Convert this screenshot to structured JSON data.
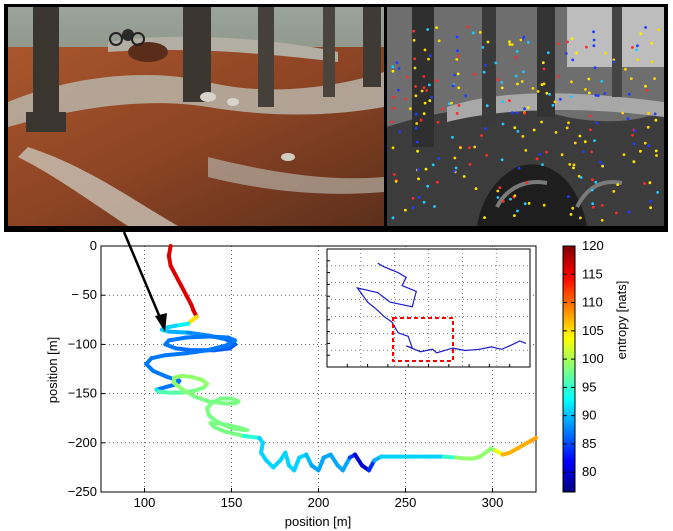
{
  "figure": {
    "photo_left": "forest trail photo with mountain biker",
    "photo_right": "grayscale forest trail with colored feature points"
  },
  "chart_data": [
    {
      "type": "line",
      "xlabel": "position [m]",
      "ylabel": "position [m]",
      "xlim": [
        75,
        325
      ],
      "ylim": [
        -250,
        0
      ],
      "xticks": [
        "100",
        "150",
        "200",
        "250",
        "300"
      ],
      "yticks": [
        "0",
        "− 50",
        "−100",
        "−150",
        "−200",
        "−250"
      ],
      "grid": true,
      "colormap": "jet",
      "series": [
        {
          "x": [
            115,
            114,
            115,
            118,
            121,
            124,
            127,
            128,
            130,
            125,
            118,
            112,
            110,
            114,
            125,
            137,
            147,
            152,
            149,
            140,
            128,
            118,
            112,
            114,
            124,
            137,
            148,
            152,
            147,
            136,
            124,
            112,
            104,
            101,
            105,
            113,
            120,
            119,
            113,
            107,
            108,
            114,
            122,
            129,
            134,
            136,
            133,
            127,
            121,
            117,
            117,
            122,
            129,
            137,
            146,
            152,
            154,
            150,
            144,
            139,
            136,
            137,
            142,
            150,
            157,
            159,
            155,
            148,
            142,
            138,
            140,
            147,
            157,
            166,
            168,
            167,
            170,
            174,
            178,
            181,
            183,
            186,
            189,
            193,
            196,
            200,
            203,
            207,
            211,
            214,
            218,
            221,
            225,
            229,
            232,
            236,
            240,
            246,
            255,
            265,
            272,
            279,
            285,
            289,
            293,
            296,
            299,
            302,
            306,
            310,
            314,
            318,
            322,
            325
          ],
          "y": [
            0,
            -10,
            -20,
            -30,
            -40,
            -50,
            -60,
            -65,
            -72,
            -79,
            -81,
            -83,
            -85,
            -87,
            -88,
            -91,
            -95,
            -100,
            -104,
            -106,
            -106,
            -104,
            -100,
            -96,
            -93,
            -92,
            -93,
            -96,
            -101,
            -106,
            -109,
            -111,
            -114,
            -120,
            -127,
            -133,
            -137,
            -140,
            -143,
            -146,
            -148,
            -149,
            -149,
            -147,
            -144,
            -140,
            -136,
            -133,
            -132,
            -134,
            -139,
            -146,
            -153,
            -158,
            -160,
            -160,
            -158,
            -155,
            -155,
            -159,
            -165,
            -172,
            -179,
            -185,
            -187,
            -187,
            -185,
            -182,
            -180,
            -180,
            -184,
            -189,
            -193,
            -195,
            -200,
            -210,
            -218,
            -225,
            -218,
            -210,
            -223,
            -228,
            -215,
            -212,
            -223,
            -228,
            -215,
            -212,
            -223,
            -228,
            -215,
            -212,
            -223,
            -228,
            -218,
            -214,
            -214,
            -214,
            -214,
            -214,
            -214,
            -215,
            -216,
            -216,
            -214,
            -210,
            -206,
            -208,
            -212,
            -210,
            -206,
            -202,
            -198,
            -195
          ],
          "entropy": [
            116,
            116,
            116,
            116,
            116,
            116,
            116,
            116,
            116,
            94,
            91,
            91,
            91,
            91,
            88,
            88,
            87,
            86,
            86,
            86,
            86,
            87,
            87,
            87,
            87,
            87,
            87,
            87,
            87,
            87,
            87,
            87,
            87,
            87,
            87,
            87,
            87,
            87,
            87,
            87,
            96,
            96,
            97,
            98,
            98,
            99,
            99,
            99,
            99,
            99,
            99,
            99,
            98,
            98,
            98,
            98,
            98,
            98,
            98,
            98,
            98,
            98,
            98,
            98,
            98,
            98,
            98,
            98,
            98,
            98,
            98,
            98,
            98,
            91,
            91,
            91,
            91,
            91,
            91,
            91,
            91,
            91,
            91,
            91,
            89,
            89,
            89,
            89,
            89,
            89,
            89,
            80,
            80,
            80,
            88,
            91,
            91,
            91,
            91,
            91,
            91,
            99,
            99,
            99,
            99,
            99,
            99,
            99,
            107,
            107,
            107,
            107,
            107,
            108
          ]
        }
      ]
    },
    {
      "type": "line",
      "inset": true,
      "grid": true,
      "xlim": [
        0,
        10
      ],
      "ylim": [
        0,
        10
      ],
      "series": [
        {
          "x": [
            2.5,
            2.8,
            3.5,
            3.9,
            3.7,
            4.4,
            4.3,
            4.2,
            3.1,
            2.5,
            1.5,
            2.0,
            2.5,
            2.8,
            3.2,
            3.5,
            4.0,
            4.2,
            3.9,
            4.6,
            5.2,
            5.4,
            6.2,
            6.8,
            7.5,
            8.1,
            8.6,
            9.0,
            9.5,
            9.8
          ],
          "y": [
            8.8,
            8.5,
            8.0,
            7.6,
            6.9,
            6.4,
            5.8,
            5.1,
            5.5,
            6.3,
            6.7,
            5.5,
            4.8,
            4.3,
            3.8,
            2.9,
            2.6,
            1.6,
            1.8,
            1.3,
            1.5,
            1.2,
            1.6,
            1.4,
            1.5,
            1.7,
            1.5,
            1.8,
            2.2,
            2.0
          ],
          "color": "#1a1acc"
        }
      ]
    },
    {
      "type": "heatmap",
      "colorbar": true,
      "label": "entropy [nats]",
      "range": [
        76.5,
        120
      ],
      "ticks": [
        "120",
        "115",
        "110",
        "105",
        "100",
        "95",
        "90",
        "85",
        "80"
      ]
    }
  ]
}
